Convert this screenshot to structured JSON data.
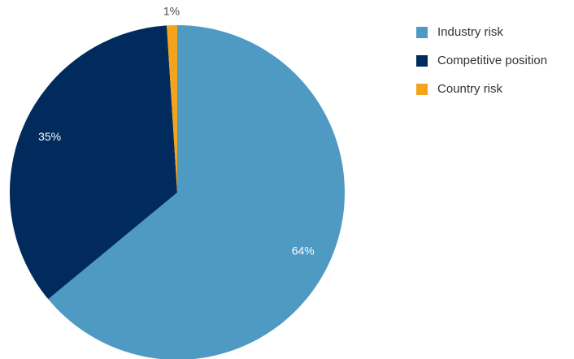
{
  "chart_data": {
    "type": "pie",
    "slices": [
      {
        "label": "Industry risk",
        "value": 64,
        "display": "64%",
        "color": "#4f9ac2"
      },
      {
        "label": "Competitive position",
        "value": 35,
        "display": "35%",
        "color": "#002b5c"
      },
      {
        "label": "Country risk",
        "value": 1,
        "display": "1%",
        "color": "#f5a31a"
      }
    ],
    "legend_position": "top-right",
    "start_angle": "12 o'clock",
    "direction": "clockwise"
  }
}
